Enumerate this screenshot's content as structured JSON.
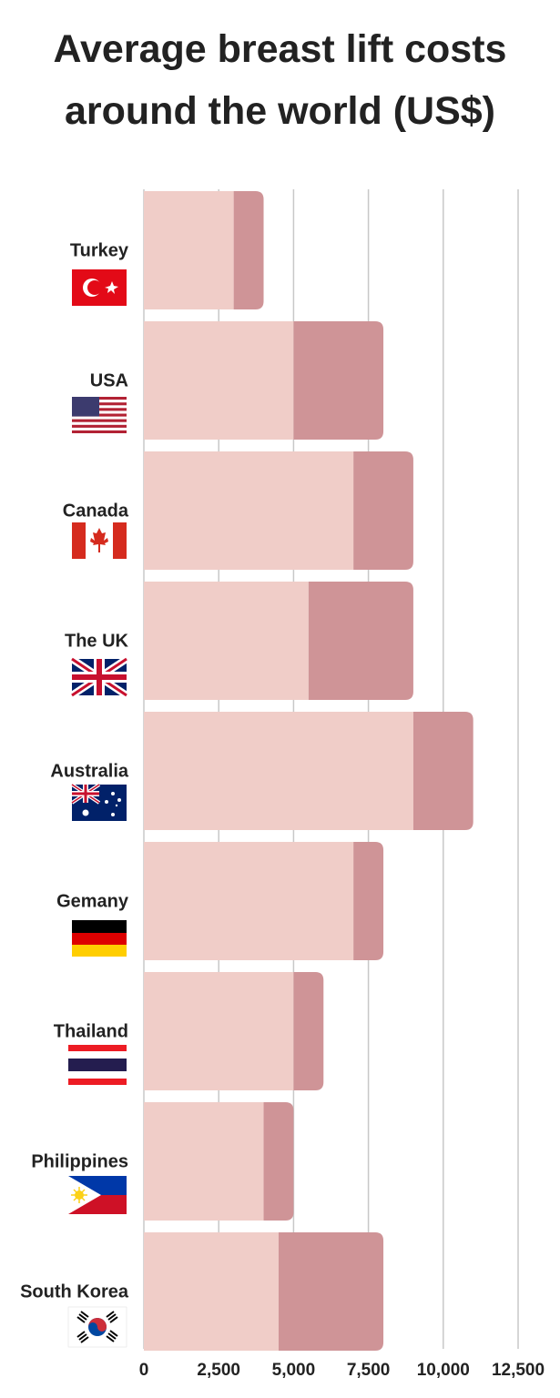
{
  "chart_data": {
    "type": "bar",
    "orientation": "horizontal",
    "stacked": true,
    "title": "Average breast lift costs around the world (US$)",
    "categories": [
      "Turkey",
      "USA",
      "Canada",
      "The UK",
      "Australia",
      "Gemany",
      "Thailand",
      "Philippines",
      "South Korea"
    ],
    "series": [
      {
        "color": "#f0cdc8",
        "values": [
          3000,
          5000,
          7000,
          5500,
          9000,
          7000,
          5000,
          4000,
          4500
        ]
      },
      {
        "color": "#cf9497",
        "values": [
          1000,
          3000,
          2000,
          3500,
          2000,
          1000,
          1000,
          1000,
          3500
        ]
      }
    ],
    "xlim": [
      0,
      12500
    ],
    "xticks": [
      0,
      {
        "value": 2500,
        "label": "2,500"
      },
      {
        "value": 5000,
        "label": "5,000"
      },
      {
        "value": 7500,
        "label": "7,500"
      },
      {
        "value": 10000,
        "label": "10,000"
      },
      {
        "value": 12500,
        "label": "12,500"
      }
    ],
    "grid": true
  }
}
